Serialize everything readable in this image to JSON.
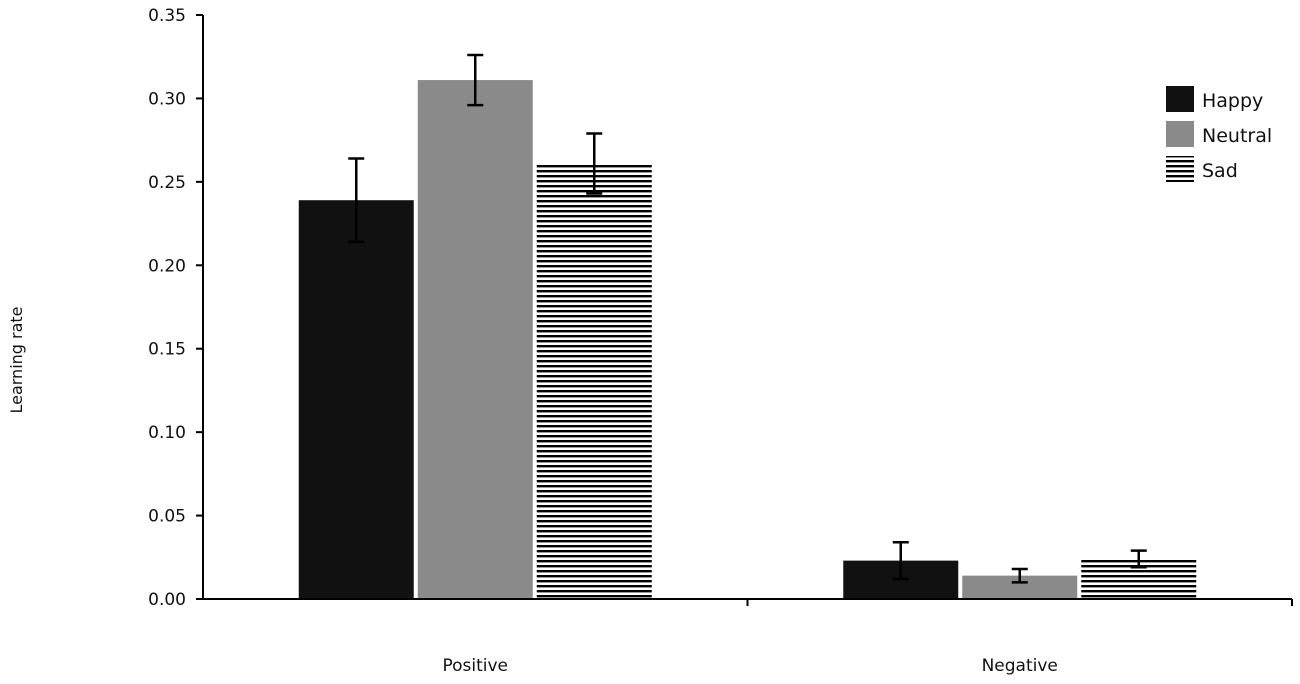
{
  "chart_data": {
    "type": "bar",
    "title": "",
    "xlabel": "",
    "ylabel": "Learning rate",
    "ylim": [
      0,
      0.35
    ],
    "y_ticks": [
      "0.00",
      "0.05",
      "0.10",
      "0.15",
      "0.20",
      "0.25",
      "0.30",
      "0.35"
    ],
    "categories": [
      "Positive",
      "Negative"
    ],
    "grid": false,
    "legend_position": "top-right",
    "series": [
      {
        "name": "Happy",
        "values": [
          0.239,
          0.023
        ],
        "errors": [
          0.025,
          0.011
        ],
        "color": "#111111",
        "pattern": "solid"
      },
      {
        "name": "Neutral",
        "values": [
          0.311,
          0.014
        ],
        "errors": [
          0.015,
          0.004
        ],
        "color": "#8a8a8a",
        "pattern": "solid"
      },
      {
        "name": "Sad",
        "values": [
          0.261,
          0.024
        ],
        "errors": [
          0.018,
          0.005
        ],
        "color": "#000000",
        "pattern": "horizontal-stripes"
      }
    ]
  }
}
